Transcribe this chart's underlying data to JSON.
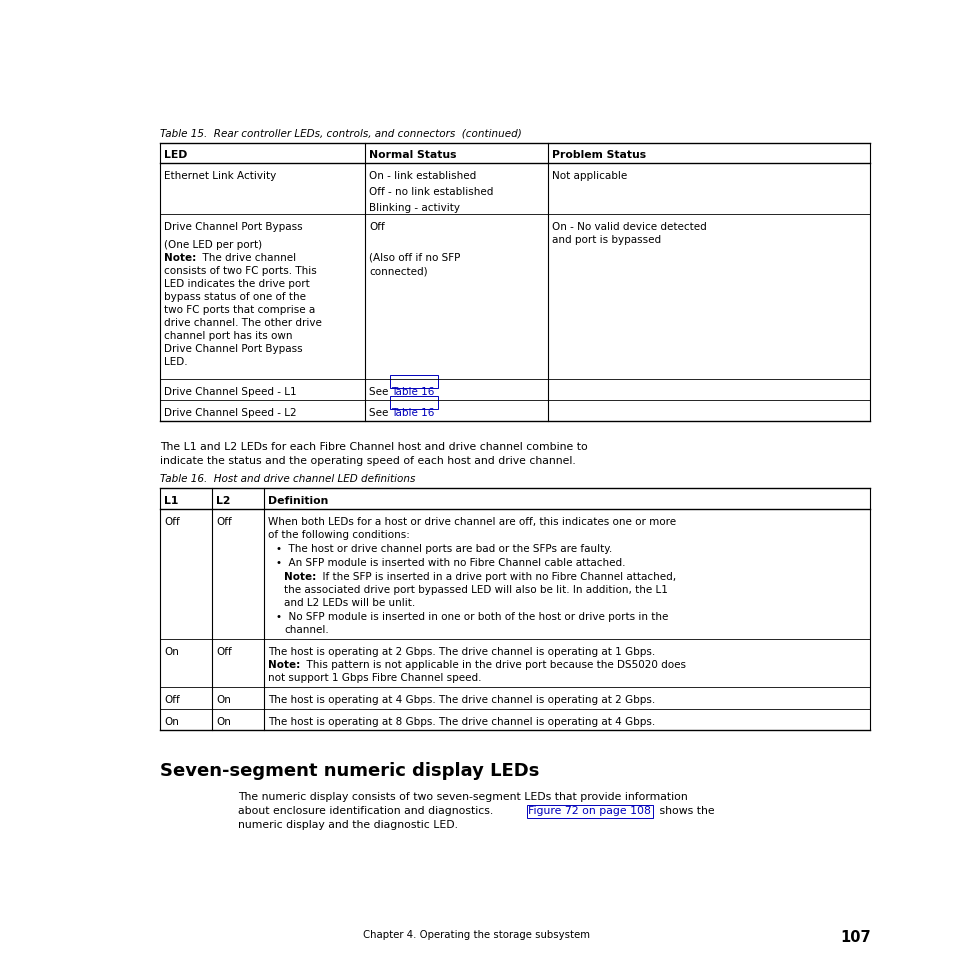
{
  "background_color": "#ffffff",
  "table15_caption": "Table 15.  Rear controller LEDs, controls, and connectors  (continued)",
  "table16_caption": "Table 16.  Host and drive channel LED definitions",
  "section_title": "Seven-segment numeric display LEDs",
  "footer_text": "Chapter 4. Operating the storage subsystem",
  "footer_page": "107"
}
